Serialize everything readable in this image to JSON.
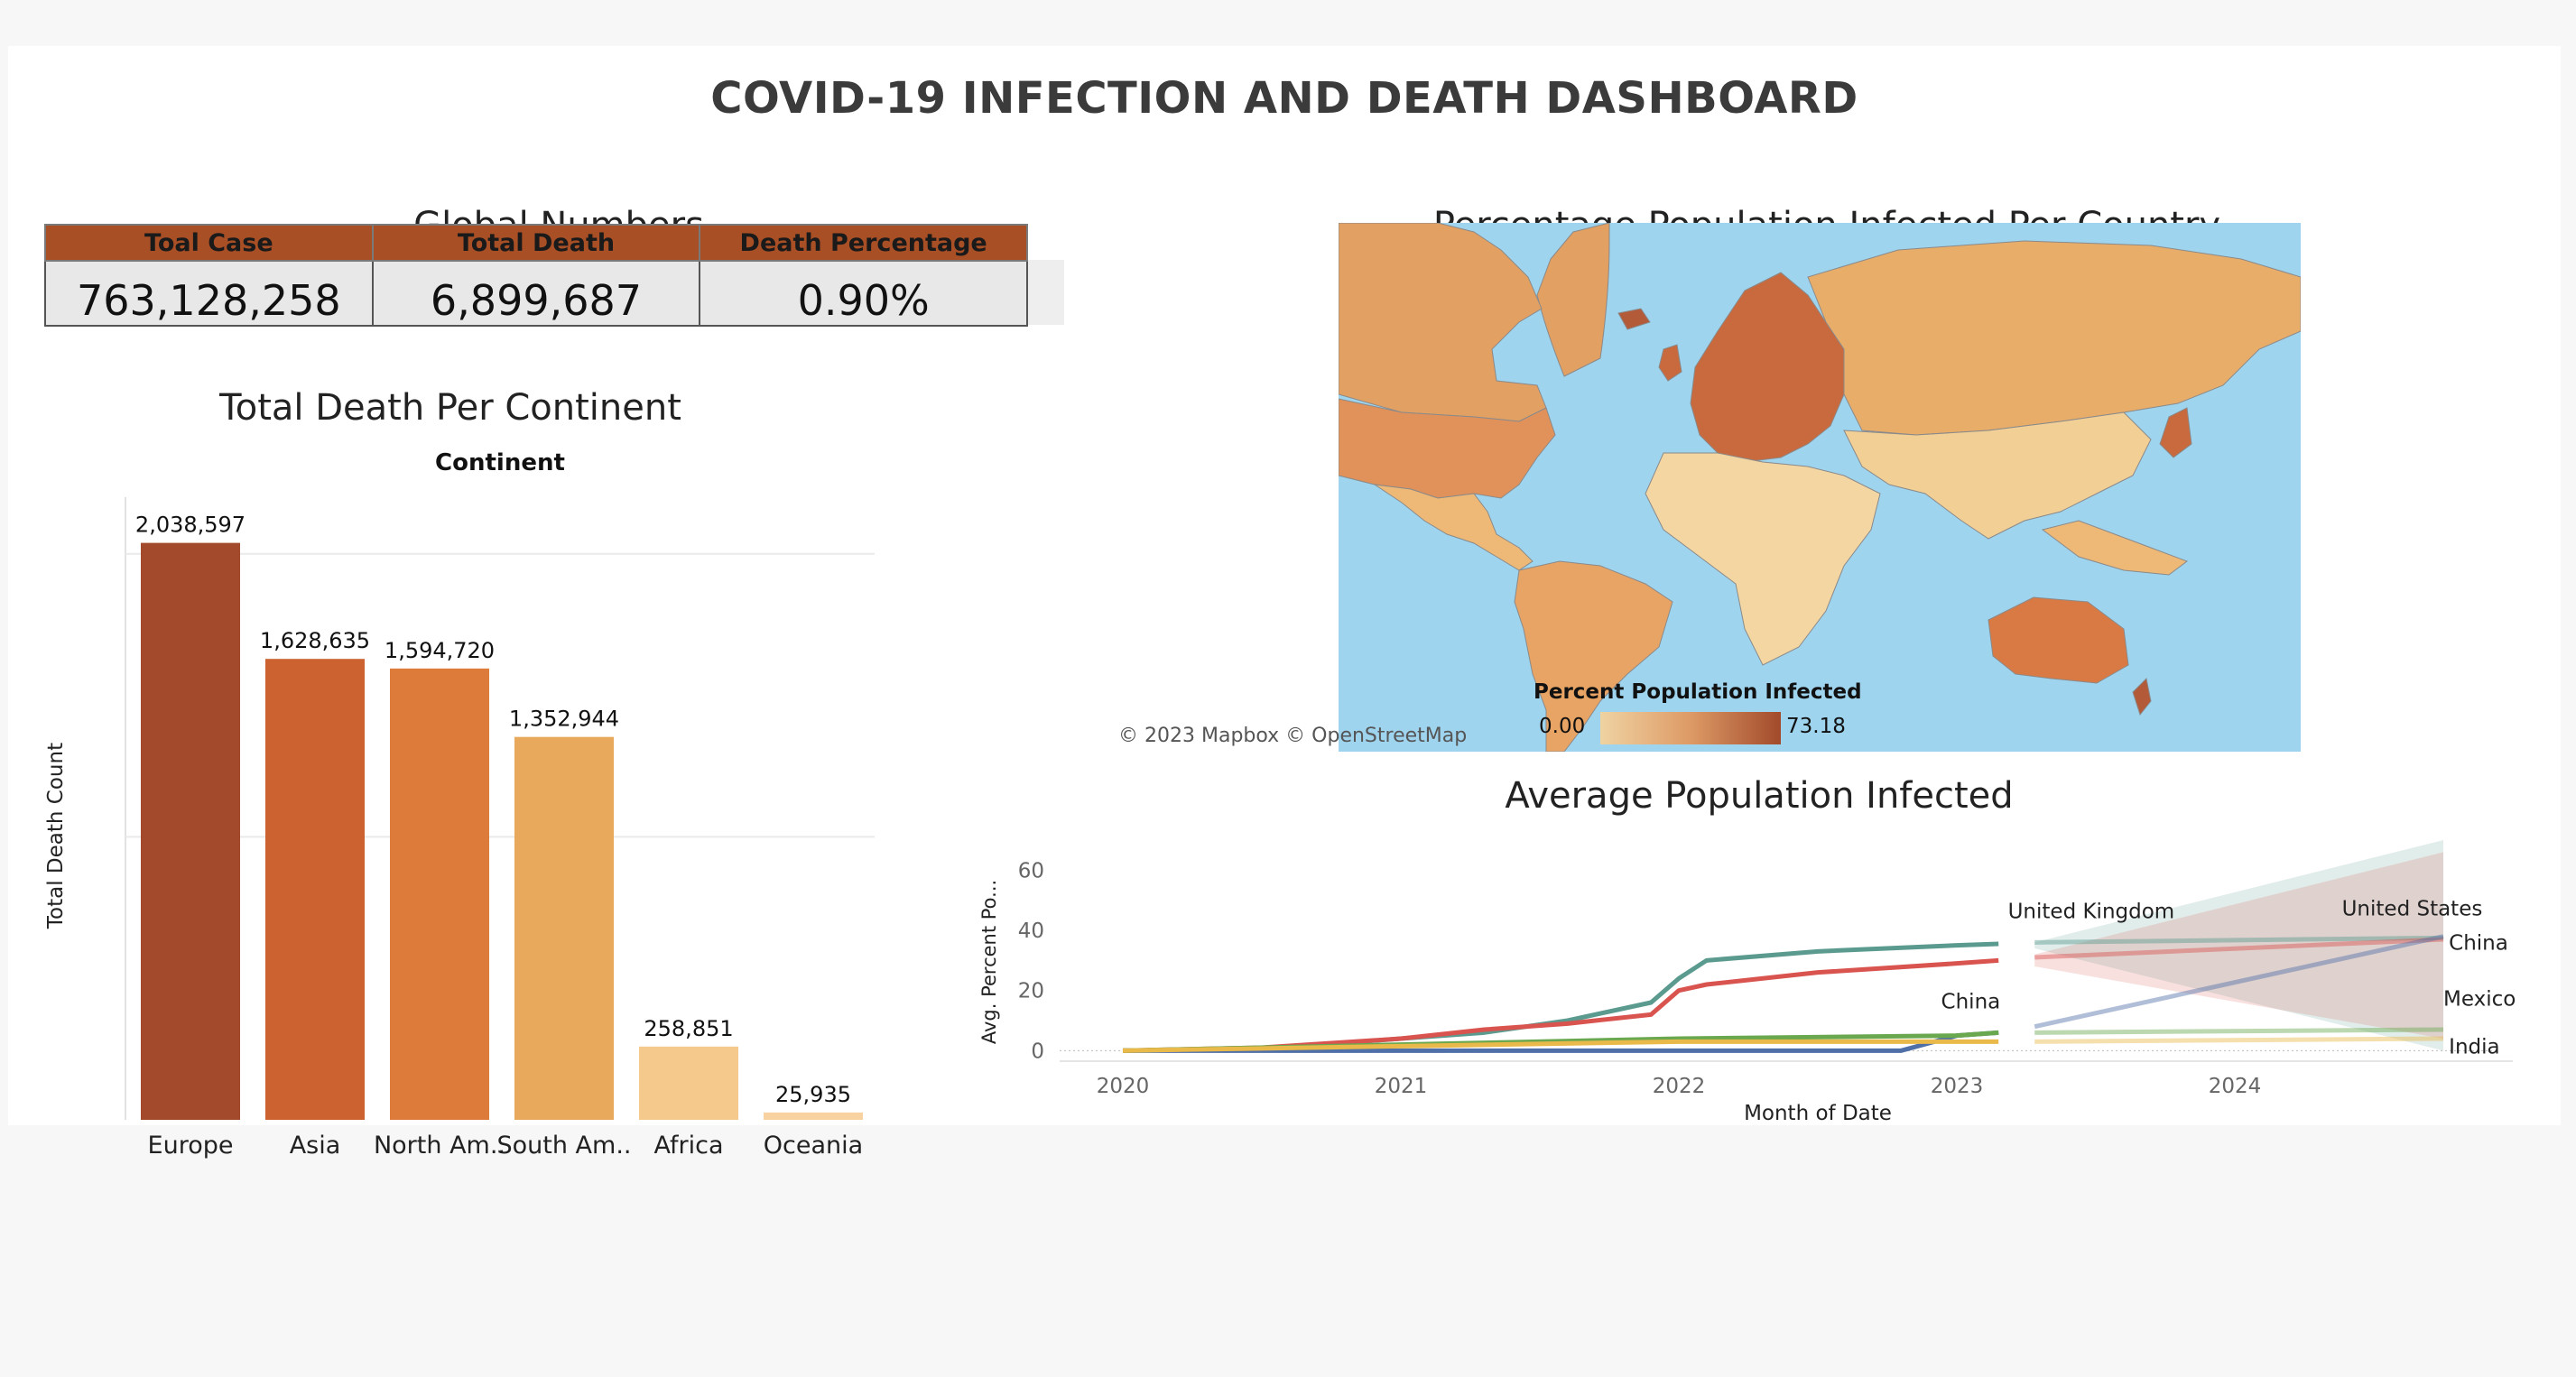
{
  "dashboard": {
    "title": "COVID-19 INFECTION AND DEATH DASHBOARD",
    "global_numbers": {
      "title": "Global Numbers",
      "headers": [
        "Toal Case",
        "Total Death",
        "Death Percentage"
      ],
      "values": [
        "763,128,258",
        "6,899,687",
        "0.90%"
      ]
    },
    "map": {
      "title": "Percentage Population Infected Per Country",
      "legend_title": "Percent Population Infected",
      "legend_min": "0.00",
      "legend_max": "73.18",
      "attribution": "© 2023 Mapbox  © OpenStreetMap",
      "colors": {
        "ocean": "#9fd4ef",
        "land_low": "#f2cf95",
        "land_mid": "#e3a063",
        "land_high": "#b35a39"
      }
    },
    "line_title": "Average Population Infected"
  },
  "chart_data": [
    {
      "type": "bar",
      "title": "Total Death Per Continent",
      "header": "Continent",
      "ylabel": "Total Death Count",
      "categories": [
        "Europe",
        "Asia",
        "North Am..",
        "South Am..",
        "Africa",
        "Oceania"
      ],
      "values": [
        2038597,
        1628635,
        1594720,
        1352944,
        258851,
        25935
      ],
      "value_labels": [
        "2,038,597",
        "1,628,635",
        "1,594,720",
        "1,352,944",
        "258,851",
        "25,935"
      ],
      "colors": [
        "#a24a2b",
        "#cc6230",
        "#dd7b3a",
        "#e9a95c",
        "#f5c88c",
        "#f8d2a0"
      ],
      "ylim": [
        0,
        2200000
      ],
      "grid": true
    },
    {
      "type": "line",
      "title": "Average Population Infected",
      "xlabel": "Month of Date",
      "ylabel": "Avg. Percent Po...",
      "x_ticks": [
        "2020",
        "2021",
        "2022",
        "2023",
        "2024"
      ],
      "y_ticks": [
        "0",
        "20",
        "40",
        "60"
      ],
      "ylim": [
        -5,
        70
      ],
      "series": [
        {
          "name": "United Kingdom",
          "color": "#5b9a8e",
          "x": [
            2020.0,
            2020.5,
            2021.0,
            2021.3,
            2021.6,
            2021.9,
            2022.0,
            2022.1,
            2022.5,
            2023.0,
            2023.15
          ],
          "y": [
            0,
            0.5,
            4,
            6,
            10,
            16,
            24,
            30,
            33,
            35,
            35.5
          ]
        },
        {
          "name": "United States",
          "color": "#d9534f",
          "x": [
            2020.0,
            2020.5,
            2021.0,
            2021.3,
            2021.6,
            2021.9,
            2022.0,
            2022.1,
            2022.5,
            2023.0,
            2023.15
          ],
          "y": [
            0,
            1,
            4,
            7,
            9,
            12,
            20,
            22,
            26,
            29,
            30
          ]
        },
        {
          "name": "China",
          "color": "#4f6fa8",
          "x": [
            2020.0,
            2021.0,
            2022.0,
            2022.8,
            2023.0,
            2023.15
          ],
          "y": [
            0,
            0,
            0,
            0,
            5,
            6
          ]
        },
        {
          "name": "Mexico",
          "color": "#6aa84f",
          "x": [
            2020.0,
            2021.0,
            2022.0,
            2023.0,
            2023.15
          ],
          "y": [
            0,
            2,
            4,
            5,
            6
          ]
        },
        {
          "name": "India",
          "color": "#e9b949",
          "x": [
            2020.0,
            2021.0,
            2022.0,
            2023.0,
            2023.15
          ],
          "y": [
            0,
            1.5,
            3,
            3,
            3
          ]
        }
      ],
      "forecast_labels": [
        "United Kingdom",
        "United States",
        "China",
        "Mexico",
        "India"
      ],
      "inline_label": "China"
    }
  ]
}
